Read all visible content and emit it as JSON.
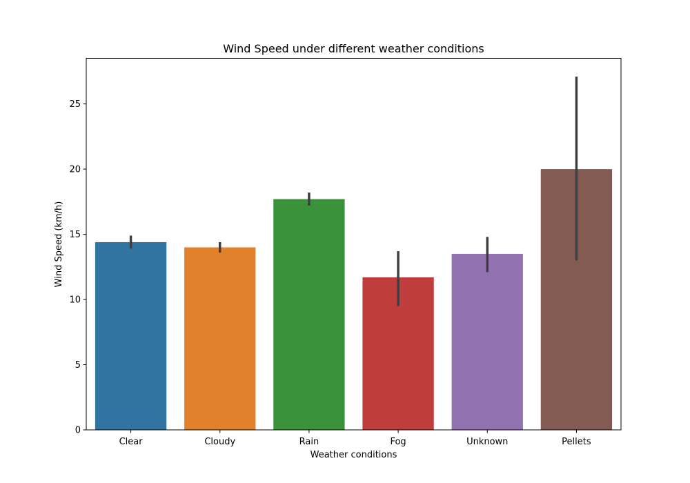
{
  "chart_data": {
    "type": "bar",
    "title": "Wind Speed under different weather conditions",
    "xlabel": "Weather conditions",
    "ylabel": "Wind Speed (km/h)",
    "ylim": [
      0,
      28.5
    ],
    "yticks": [
      0,
      5,
      10,
      15,
      20,
      25
    ],
    "grid": false,
    "categories": [
      "Clear",
      "Cloudy",
      "Rain",
      "Fog",
      "Unknown",
      "Pellets"
    ],
    "values": [
      14.4,
      14.0,
      17.7,
      11.7,
      13.5,
      20.0
    ],
    "error_low": [
      13.9,
      13.6,
      17.2,
      9.5,
      12.1,
      13.0
    ],
    "error_high": [
      14.9,
      14.4,
      18.2,
      13.7,
      14.8,
      27.1
    ],
    "colors": [
      "#3274a1",
      "#e1812c",
      "#3a923a",
      "#c03d3e",
      "#9372b2",
      "#845b53"
    ],
    "error_color": "#3f3f3f"
  }
}
